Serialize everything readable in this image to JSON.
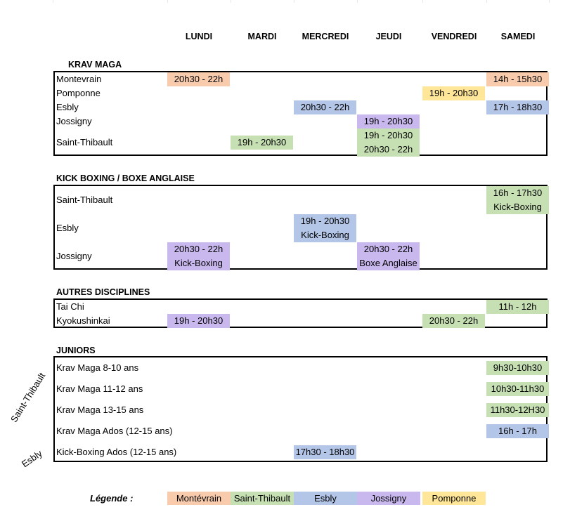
{
  "colors": {
    "montevrain": "#f8cbad",
    "saint_thibault": "#c6e0b4",
    "esbly": "#b4c6e7",
    "jossigny": "#c9b8ee",
    "pomponne": "#ffe699"
  },
  "days": [
    "LUNDI",
    "MARDI",
    "MERCREDI",
    "JEUDI",
    "VENDREDI",
    "SAMEDI"
  ],
  "krav_maga": {
    "title": "KRAV MAGA",
    "rows": [
      {
        "label": "Montevrain",
        "cells": [
          {
            "day": "LUNDI",
            "lines": [
              "20h30 - 22h"
            ],
            "venue": "montevrain"
          },
          {
            "day": "SAMEDI",
            "lines": [
              "14h - 15h30"
            ],
            "venue": "montevrain"
          }
        ]
      },
      {
        "label": "Pomponne",
        "cells": [
          {
            "day": "VENDREDI",
            "lines": [
              "19h - 20h30"
            ],
            "venue": "pomponne"
          }
        ]
      },
      {
        "label": "Esbly",
        "cells": [
          {
            "day": "MERCREDI",
            "lines": [
              "20h30 - 22h"
            ],
            "venue": "esbly"
          },
          {
            "day": "SAMEDI",
            "lines": [
              "17h - 18h30"
            ],
            "venue": "esbly"
          }
        ]
      },
      {
        "label": "Jossigny",
        "cells": [
          {
            "day": "JEUDI",
            "lines": [
              "19h - 20h30"
            ],
            "venue": "jossigny"
          }
        ]
      },
      {
        "label": "Saint-Thibault",
        "cells": [
          {
            "day": "MARDI",
            "lines": [
              "19h - 20h30"
            ],
            "venue": "saint_thibault"
          },
          {
            "day": "JEUDI",
            "lines": [
              "19h - 20h30",
              "20h30 - 22h"
            ],
            "venue": "saint_thibault"
          }
        ]
      }
    ]
  },
  "kick_boxing": {
    "title": "KICK BOXING / BOXE ANGLAISE",
    "rows": [
      {
        "label": "Saint-Thibault",
        "cells": [
          {
            "day": "SAMEDI",
            "lines": [
              "16h - 17h30",
              "Kick-Boxing"
            ],
            "venue": "saint_thibault"
          }
        ]
      },
      {
        "label": "Esbly",
        "cells": [
          {
            "day": "MERCREDI",
            "lines": [
              "19h - 20h30",
              "Kick-Boxing"
            ],
            "venue": "esbly"
          }
        ]
      },
      {
        "label": "Jossigny",
        "cells": [
          {
            "day": "LUNDI",
            "lines": [
              "20h30 - 22h",
              "Kick-Boxing"
            ],
            "venue": "jossigny"
          },
          {
            "day": "JEUDI",
            "lines": [
              "20h30 - 22h",
              "Boxe Anglaise"
            ],
            "venue": "jossigny"
          }
        ]
      }
    ]
  },
  "autres": {
    "title": "AUTRES DISCIPLINES",
    "rows": [
      {
        "label": "Tai Chi",
        "cells": [
          {
            "day": "SAMEDI",
            "lines": [
              "11h - 12h"
            ],
            "venue": "saint_thibault"
          }
        ]
      },
      {
        "label": "Kyokushinkai",
        "cells": [
          {
            "day": "LUNDI",
            "lines": [
              "19h - 20h30"
            ],
            "venue": "jossigny"
          },
          {
            "day": "VENDREDI",
            "lines": [
              "20h30 - 22h"
            ],
            "venue": "saint_thibault"
          }
        ]
      }
    ]
  },
  "juniors": {
    "title": "JUNIORS",
    "side_labels": [
      "Saint-Thibault",
      "Esbly"
    ],
    "rows": [
      {
        "label": "Krav Maga 8-10 ans",
        "cells": [
          {
            "day": "SAMEDI",
            "lines": [
              "9h30-10h30"
            ],
            "venue": "saint_thibault"
          }
        ]
      },
      {
        "label": "Krav Maga 11-12 ans",
        "cells": [
          {
            "day": "SAMEDI",
            "lines": [
              "10h30-11h30"
            ],
            "venue": "saint_thibault"
          }
        ]
      },
      {
        "label": "Krav Maga 13-15 ans",
        "cells": [
          {
            "day": "SAMEDI",
            "lines": [
              "11h30-12H30"
            ],
            "venue": "saint_thibault"
          }
        ]
      },
      {
        "label": "Krav Maga Ados (12-15 ans)",
        "cells": [
          {
            "day": "SAMEDI",
            "lines": [
              "16h - 17h"
            ],
            "venue": "esbly"
          }
        ]
      },
      {
        "label": "Kick-Boxing Ados (12-15 ans)",
        "cells": [
          {
            "day": "MERCREDI",
            "lines": [
              "17h30 - 18h30"
            ],
            "venue": "esbly"
          }
        ]
      }
    ]
  },
  "legend": {
    "label": "Légende :",
    "items": [
      {
        "text": "Montévrain",
        "venue": "montevrain"
      },
      {
        "text": "Saint-Thibault",
        "venue": "saint_thibault"
      },
      {
        "text": "Esbly",
        "venue": "esbly"
      },
      {
        "text": "Jossigny",
        "venue": "jossigny"
      },
      {
        "text": "Pomponne",
        "venue": "pomponne"
      }
    ]
  }
}
